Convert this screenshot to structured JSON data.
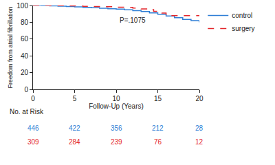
{
  "chart_data": {
    "type": "line",
    "x_label": "Follow-Up (Years)",
    "y_label": "Freedom from atrial fibrillation",
    "xlim": [
      0,
      20
    ],
    "xticks": [
      0,
      5,
      10,
      15,
      20
    ],
    "ylim": [
      0,
      100
    ],
    "yticks": [
      0,
      20,
      40,
      60,
      80,
      100
    ],
    "grid": false,
    "legend": "right",
    "annotations": [
      {
        "text": "P=.1075",
        "x": 12,
        "y": 82
      }
    ],
    "series": [
      {
        "name": "control",
        "color": "#2f7fd6",
        "line_style": "solid",
        "x": [
          0,
          1,
          2,
          3,
          4,
          5,
          6,
          7,
          8,
          9,
          10,
          11,
          12,
          13,
          14,
          15,
          16,
          17,
          18,
          19,
          20
        ],
        "values": [
          100,
          99.8,
          99.5,
          99.2,
          98.8,
          98.3,
          97.8,
          97.3,
          96.8,
          96.2,
          95.6,
          94.8,
          93.8,
          92.8,
          91.2,
          89.5,
          87.5,
          85.5,
          83.5,
          82,
          80
        ]
      },
      {
        "name": "surgery",
        "color": "#e3262b",
        "line_style": "dash",
        "x": [
          0,
          2,
          4,
          6,
          7,
          8,
          10,
          11,
          12,
          13,
          14,
          14.5,
          15,
          15.5,
          16,
          20
        ],
        "values": [
          100,
          99.8,
          99.5,
          99,
          98.8,
          98.5,
          98,
          97.8,
          97,
          96,
          95,
          93,
          92,
          91,
          88,
          88
        ]
      }
    ],
    "at_risk": {
      "label": "No. at Risk",
      "x": [
        0,
        5,
        10,
        15,
        20
      ],
      "rows": [
        {
          "name": "control",
          "color": "#2f7fd6",
          "values": [
            446,
            422,
            356,
            212,
            28
          ]
        },
        {
          "name": "surgery",
          "color": "#e3262b",
          "values": [
            309,
            284,
            239,
            76,
            12
          ]
        }
      ]
    }
  }
}
